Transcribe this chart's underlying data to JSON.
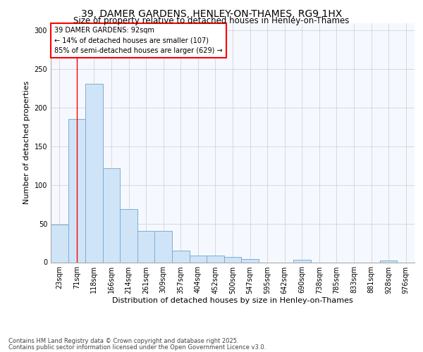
{
  "title1": "39, DAMER GARDENS, HENLEY-ON-THAMES, RG9 1HX",
  "title2": "Size of property relative to detached houses in Henley-on-Thames",
  "xlabel": "Distribution of detached houses by size in Henley-on-Thames",
  "ylabel": "Number of detached properties",
  "categories": [
    "23sqm",
    "71sqm",
    "118sqm",
    "166sqm",
    "214sqm",
    "261sqm",
    "309sqm",
    "357sqm",
    "404sqm",
    "452sqm",
    "500sqm",
    "547sqm",
    "595sqm",
    "642sqm",
    "690sqm",
    "738sqm",
    "785sqm",
    "833sqm",
    "881sqm",
    "928sqm",
    "976sqm"
  ],
  "values": [
    49,
    186,
    231,
    122,
    69,
    41,
    41,
    15,
    9,
    9,
    7,
    4,
    0,
    0,
    3,
    0,
    0,
    0,
    0,
    2,
    0
  ],
  "bar_color": "#d0e4f7",
  "bar_edge_color": "#7bafd4",
  "red_line_x": 1.0,
  "annotation_text": "39 DAMER GARDENS: 92sqm\n← 14% of detached houses are smaller (107)\n85% of semi-detached houses are larger (629) →",
  "annotation_box_color": "white",
  "annotation_box_edge": "red",
  "footer1": "Contains HM Land Registry data © Crown copyright and database right 2025.",
  "footer2": "Contains public sector information licensed under the Open Government Licence v3.0.",
  "ylim": [
    0,
    310
  ],
  "yticks": [
    0,
    50,
    100,
    150,
    200,
    250,
    300
  ],
  "grid_color": "#cccccc",
  "background_color": "#ffffff",
  "plot_bg_color": "#f5f8ff",
  "title1_fontsize": 10,
  "title2_fontsize": 8.5,
  "xlabel_fontsize": 8,
  "ylabel_fontsize": 8,
  "tick_fontsize": 7,
  "annotation_fontsize": 7,
  "footer_fontsize": 6
}
